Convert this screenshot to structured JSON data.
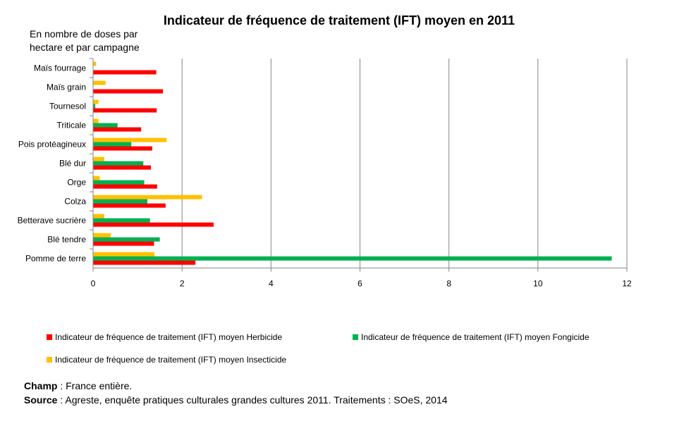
{
  "chart_data": {
    "type": "bar",
    "orientation": "horizontal",
    "title": "Indicateur de fréquence de traitement (IFT) moyen en 2011",
    "unit_label": "En nombre de doses par hectare et par campagne",
    "unit_label_lines": [
      "En nombre de doses par",
      "hectare et par campagne"
    ],
    "categories": [
      "Maïs fourrage",
      "Maïs grain",
      "Tournesol",
      "Triticale",
      "Pois protéagineux",
      "Blé dur",
      "Orge",
      "Colza",
      "Betterave sucrière",
      "Blé tendre",
      "Pomme de terre"
    ],
    "series": [
      {
        "name": "Indicateur de fréquence de traitement (IFT) moyen Insecticide",
        "color": "#FFC000",
        "values": [
          0.07,
          0.28,
          0.12,
          0.12,
          1.65,
          0.25,
          0.15,
          2.45,
          0.25,
          0.4,
          1.38
        ]
      },
      {
        "name": "Indicateur de fréquence de traitement (IFT) moyen Fongicide",
        "color": "#00B050",
        "values": [
          0.0,
          0.0,
          0.05,
          0.55,
          0.86,
          1.13,
          1.15,
          1.22,
          1.28,
          1.5,
          11.66
        ]
      },
      {
        "name": "Indicateur de fréquence de traitement (IFT) moyen Herbicide",
        "color": "#FF0000",
        "values": [
          1.42,
          1.57,
          1.43,
          1.08,
          1.33,
          1.3,
          1.44,
          1.63,
          2.71,
          1.37,
          2.3
        ]
      }
    ],
    "xlim": [
      0,
      12
    ],
    "xticks": [
      "0",
      "2",
      "4",
      "6",
      "8",
      "10",
      "12"
    ],
    "grid": true,
    "legend_position": "bottom"
  },
  "legend": [
    {
      "label": "Indicateur de fréquence de traitement (IFT) moyen Herbicide",
      "color": "#FF0000"
    },
    {
      "label": "Indicateur de fréquence de traitement (IFT) moyen Fongicide",
      "color": "#00B050"
    },
    {
      "label": "Indicateur de fréquence de traitement (IFT) moyen Insecticide",
      "color": "#FFC000"
    }
  ],
  "footer": {
    "champ_label": "Champ",
    "champ_text": " : France entière.",
    "source_label": "Source",
    "source_text": " : Agreste, enquête pratiques culturales grandes cultures 2011. Traitements : SOeS, 2014"
  }
}
